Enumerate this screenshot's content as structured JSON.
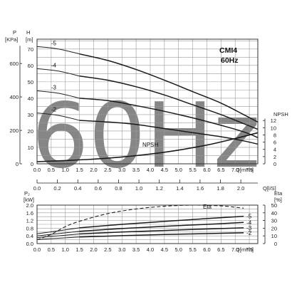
{
  "watermark": "60Hz",
  "chart_data": [
    {
      "type": "line",
      "title": "CMI4",
      "subtitle": "60Hz",
      "x_ticks": [
        "0.0",
        "0.5",
        "1.0",
        "1.5",
        "2.0",
        "2.5",
        "3.0",
        "3.5",
        "4.0",
        "4.5",
        "5.0",
        "5.5",
        "6.0",
        "6.5",
        "7.0",
        "7.5"
      ],
      "x_unit": "Q[m³/h]",
      "x2_ticks": [
        "0.0",
        "0.2",
        "0.4",
        "0.6",
        "0.8",
        "1.0",
        "1.2",
        "1.4",
        "1.6",
        "1.8",
        "2.0"
      ],
      "x2_unit": "Q[l/S]",
      "y_left_label": "P",
      "y_left_unit": "[KPa]",
      "y_left_ticks": [
        "0",
        "200",
        "400",
        "600"
      ],
      "y_label": "H",
      "y_unit": "[m]",
      "y_ticks": [
        "0",
        "10",
        "20",
        "30",
        "40",
        "50",
        "60",
        "70"
      ],
      "y_right_label": "NPSH",
      "y_right_ticks": [
        "0",
        "2",
        "4",
        "6",
        "8",
        "10",
        "12"
      ],
      "xlim": [
        0,
        7.8
      ],
      "ylim": [
        0,
        76
      ],
      "series": [
        {
          "name": "-5",
          "x": [
            1.5,
            2.5,
            3.5,
            4.5,
            5.5,
            6.5,
            7.3,
            7.8
          ],
          "y": [
            67,
            63,
            57.5,
            51,
            44,
            37,
            30,
            25.5
          ]
        },
        {
          "name": "-4",
          "x": [
            1.5,
            2.5,
            3.5,
            4.5,
            5.5,
            6.5,
            7.3,
            7.8
          ],
          "y": [
            53.5,
            51,
            47,
            42,
            36,
            30,
            24.5,
            21
          ]
        },
        {
          "name": "-3",
          "x": [
            1.5,
            2.5,
            3.5,
            4.5,
            5.5,
            6.5,
            7.3,
            7.8
          ],
          "y": [
            40,
            38.5,
            35.5,
            32,
            28,
            23.5,
            19.5,
            16
          ]
        },
        {
          "name": "-2",
          "x": [
            1.5,
            2.5,
            3.5,
            4.5,
            5.5,
            6.5,
            7.3,
            7.8
          ],
          "y": [
            26.5,
            25.5,
            24,
            21.5,
            19,
            16.5,
            14,
            12
          ]
        }
      ],
      "npsh": {
        "name": "NPSH",
        "x": [
          0.0,
          1.0,
          2.0,
          3.0,
          4.0,
          5.0,
          6.0,
          7.0,
          7.8
        ],
        "y": [
          0.6,
          0.9,
          1.3,
          1.9,
          2.7,
          3.8,
          5.2,
          7.0,
          8.6
        ]
      },
      "npsh_label": "NPSH"
    },
    {
      "type": "line",
      "x_ticks": [
        "0.0",
        "0.5",
        "1.0",
        "1.5",
        "2.0",
        "2.5",
        "3.0",
        "3.5",
        "4.0",
        "4.5",
        "5.0",
        "5.5",
        "6.0",
        "6.5",
        "7.0",
        "7.5"
      ],
      "x_unit": "Q[m³/h]",
      "y_label": "P₂",
      "y_unit": "[kW]",
      "y_ticks": [
        "0.0",
        "0.2",
        "0.4",
        "0.6",
        "0.8",
        "1.0",
        "1.2",
        "1.4",
        "1.6",
        "1.8",
        "2.0"
      ],
      "y_right_label": "Eta",
      "y_right_unit": "[%]",
      "y_right_ticks": [
        "0",
        "10",
        "20",
        "30",
        "40",
        "50"
      ],
      "xlim": [
        0,
        7.8
      ],
      "ylim": [
        0,
        2.0
      ],
      "series": [
        {
          "name": "-5",
          "x": [
            1.5,
            3.0,
            4.5,
            6.0,
            7.3
          ],
          "y": [
            0.82,
            1.0,
            1.15,
            1.3,
            1.42
          ]
        },
        {
          "name": "-4",
          "x": [
            1.5,
            3.0,
            4.5,
            6.0,
            7.3
          ],
          "y": [
            0.64,
            0.78,
            0.9,
            1.0,
            1.1
          ]
        },
        {
          "name": "-3",
          "x": [
            1.5,
            3.0,
            4.5,
            6.0,
            7.3
          ],
          "y": [
            0.5,
            0.6,
            0.68,
            0.76,
            0.82
          ]
        },
        {
          "name": "-2",
          "x": [
            1.5,
            3.0,
            4.5,
            6.0,
            7.3
          ],
          "y": [
            0.34,
            0.41,
            0.47,
            0.52,
            0.56
          ]
        }
      ],
      "eta": {
        "name": "Eta",
        "x": [
          0.0,
          0.5,
          1.0,
          1.5,
          2.5,
          3.5,
          4.5,
          5.5,
          6.5,
          7.3
        ],
        "y": [
          5,
          12,
          22,
          29,
          39,
          45,
          48.5,
          50,
          49,
          46
        ]
      },
      "eta_label": "Eta"
    }
  ]
}
